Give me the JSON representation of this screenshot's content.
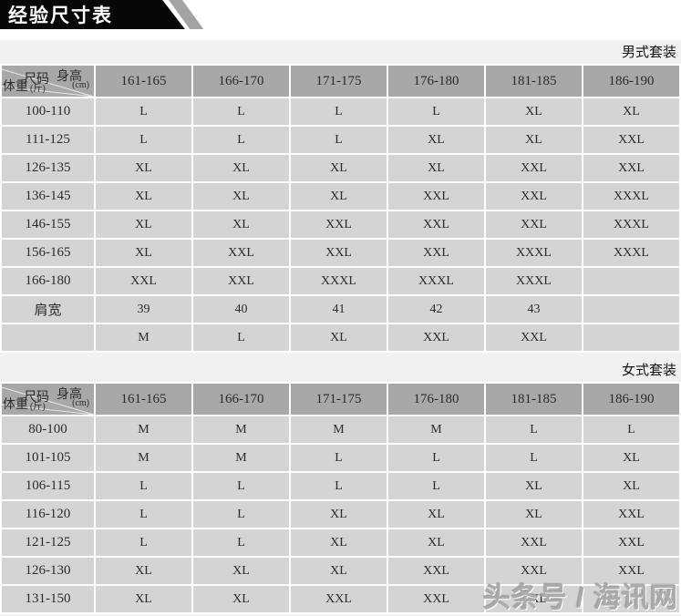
{
  "banner": {
    "title": "经验尺寸表"
  },
  "colors": {
    "banner_bg": "#070707",
    "banner_stripe": "#a3a3a3",
    "header_cell_bg": "#a8a8a8",
    "body_cell_bg": "#d4d4d4",
    "gridline": "#ffffff",
    "page_bg": "#f1f1f1",
    "text": "#2b2b2b"
  },
  "watermark": "头条号 / 海讯网",
  "tables": [
    {
      "section_label": "男式套装",
      "corner": {
        "size_label": "尺码",
        "height_label": "身高",
        "height_unit": "(cm)",
        "weight_label": "体重",
        "weight_unit": "(斤)"
      },
      "columns": [
        "161-165",
        "166-170",
        "171-175",
        "176-180",
        "181-185",
        "186-190"
      ],
      "rows": [
        {
          "label": "100-110",
          "cells": [
            "L",
            "L",
            "L",
            "L",
            "XL",
            "XL"
          ]
        },
        {
          "label": "111-125",
          "cells": [
            "L",
            "L",
            "L",
            "XL",
            "XL",
            "XXL"
          ]
        },
        {
          "label": "126-135",
          "cells": [
            "XL",
            "XL",
            "XL",
            "XL",
            "XXL",
            "XXL"
          ]
        },
        {
          "label": "136-145",
          "cells": [
            "XL",
            "XL",
            "XL",
            "XXL",
            "XXL",
            "XXXL"
          ]
        },
        {
          "label": "146-155",
          "cells": [
            "XL",
            "XL",
            "XXL",
            "XXL",
            "XXL",
            "XXXL"
          ]
        },
        {
          "label": "156-165",
          "cells": [
            "XL",
            "XXL",
            "XXL",
            "XXL",
            "XXXL",
            "XXXL"
          ]
        },
        {
          "label": "166-180",
          "cells": [
            "XXL",
            "XXL",
            "XXXL",
            "XXXL",
            "XXXL",
            ""
          ]
        },
        {
          "label": "肩宽",
          "cells": [
            "39",
            "40",
            "41",
            "42",
            "43",
            ""
          ]
        },
        {
          "label": "",
          "cells": [
            "M",
            "L",
            "XL",
            "XXL",
            "XXL",
            ""
          ]
        }
      ]
    },
    {
      "section_label": "女式套装",
      "corner": {
        "size_label": "尺码",
        "height_label": "身高",
        "height_unit": "(cm)",
        "weight_label": "体重",
        "weight_unit": "(斤)"
      },
      "columns": [
        "161-165",
        "166-170",
        "171-175",
        "176-180",
        "181-185",
        "186-190"
      ],
      "rows": [
        {
          "label": "80-100",
          "cells": [
            "M",
            "M",
            "M",
            "M",
            "L",
            "L"
          ]
        },
        {
          "label": "101-105",
          "cells": [
            "M",
            "M",
            "L",
            "L",
            "L",
            "XL"
          ]
        },
        {
          "label": "106-115",
          "cells": [
            "L",
            "L",
            "L",
            "L",
            "XL",
            "XL"
          ]
        },
        {
          "label": "116-120",
          "cells": [
            "L",
            "L",
            "XL",
            "XL",
            "XL",
            "XXL"
          ]
        },
        {
          "label": "121-125",
          "cells": [
            "L",
            "L",
            "XL",
            "XL",
            "XXL",
            "XXL"
          ]
        },
        {
          "label": "126-130",
          "cells": [
            "XL",
            "XL",
            "XL",
            "XXL",
            "XXL",
            "XXL"
          ]
        },
        {
          "label": "131-150",
          "cells": [
            "XL",
            "XL",
            "XXL",
            "XXL",
            "XXL",
            ""
          ]
        }
      ]
    }
  ]
}
